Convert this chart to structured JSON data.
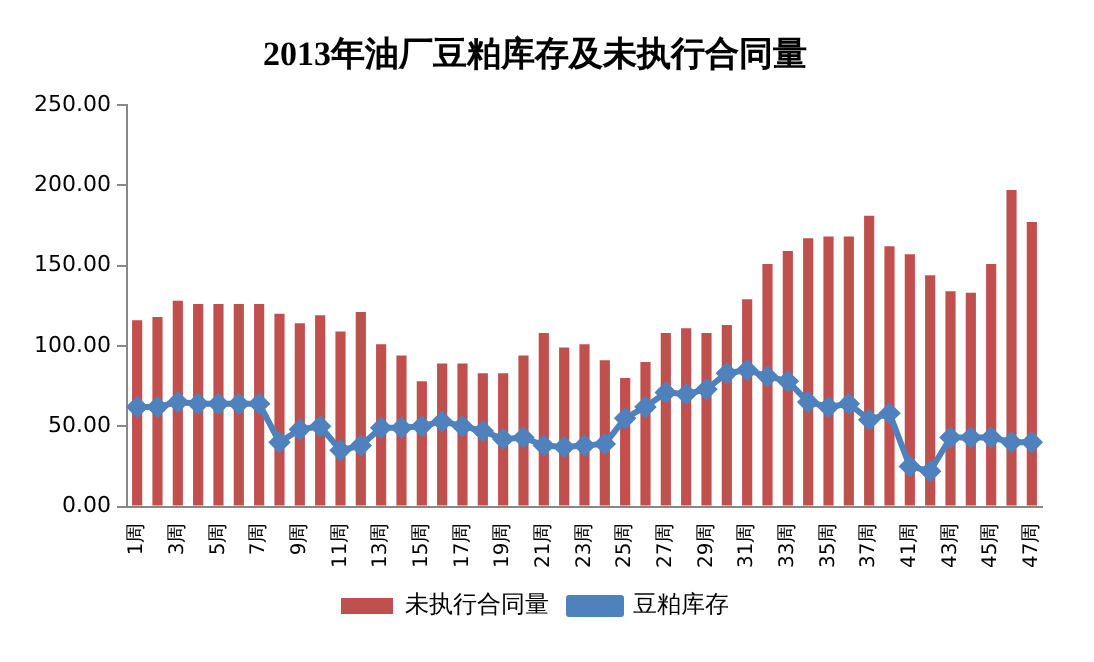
{
  "chart_data": {
    "type": "bar",
    "title": "2013年油厂豆粕库存及未执行合同量",
    "categories": [
      "1周",
      null,
      "3周",
      null,
      "5周",
      null,
      "7周",
      null,
      "9周",
      null,
      "11周",
      null,
      "13周",
      null,
      "15周",
      null,
      "17周",
      null,
      "19周",
      null,
      "21周",
      null,
      "23周",
      null,
      "25周",
      null,
      "27周",
      null,
      "29周",
      null,
      "31周",
      null,
      "33周",
      null,
      "35周",
      null,
      "37周",
      null,
      "41周",
      null,
      "43周",
      null,
      "45周",
      null,
      "47周"
    ],
    "series": [
      {
        "name": "未执行合同量",
        "color": "#c0504d",
        "values": [
          116,
          118,
          128,
          126,
          126,
          126,
          126,
          120,
          114,
          119,
          109,
          121,
          101,
          94,
          78,
          89,
          89,
          83,
          83,
          94,
          108,
          99,
          101,
          91,
          80,
          90,
          108,
          111,
          108,
          113,
          129,
          151,
          159,
          167,
          168,
          168,
          181,
          162,
          157,
          144,
          134,
          133,
          151,
          197,
          177
        ]
      },
      {
        "name": "豆粕库存",
        "type": "line",
        "color": "#4f81bd",
        "marker": "diamond",
        "values": [
          62,
          62,
          65,
          64,
          64,
          64,
          64,
          40,
          48,
          50,
          35,
          38,
          49,
          49,
          50,
          53,
          50,
          47,
          42,
          43,
          38,
          37,
          38,
          39,
          55,
          62,
          71,
          70,
          73,
          83,
          85,
          81,
          78,
          65,
          62,
          64,
          54,
          58,
          25,
          22,
          43,
          43,
          43,
          40,
          40
        ]
      }
    ],
    "ylim": [
      0,
      250
    ],
    "yticks": [
      {
        "value": 0,
        "label": "0.00"
      },
      {
        "value": 50,
        "label": "50.00"
      },
      {
        "value": 100,
        "label": "100.00"
      },
      {
        "value": 150,
        "label": "150.00"
      },
      {
        "value": 200,
        "label": "200.00"
      },
      {
        "value": 250,
        "label": "250.00"
      }
    ],
    "grid": false,
    "legend": "bottom"
  }
}
